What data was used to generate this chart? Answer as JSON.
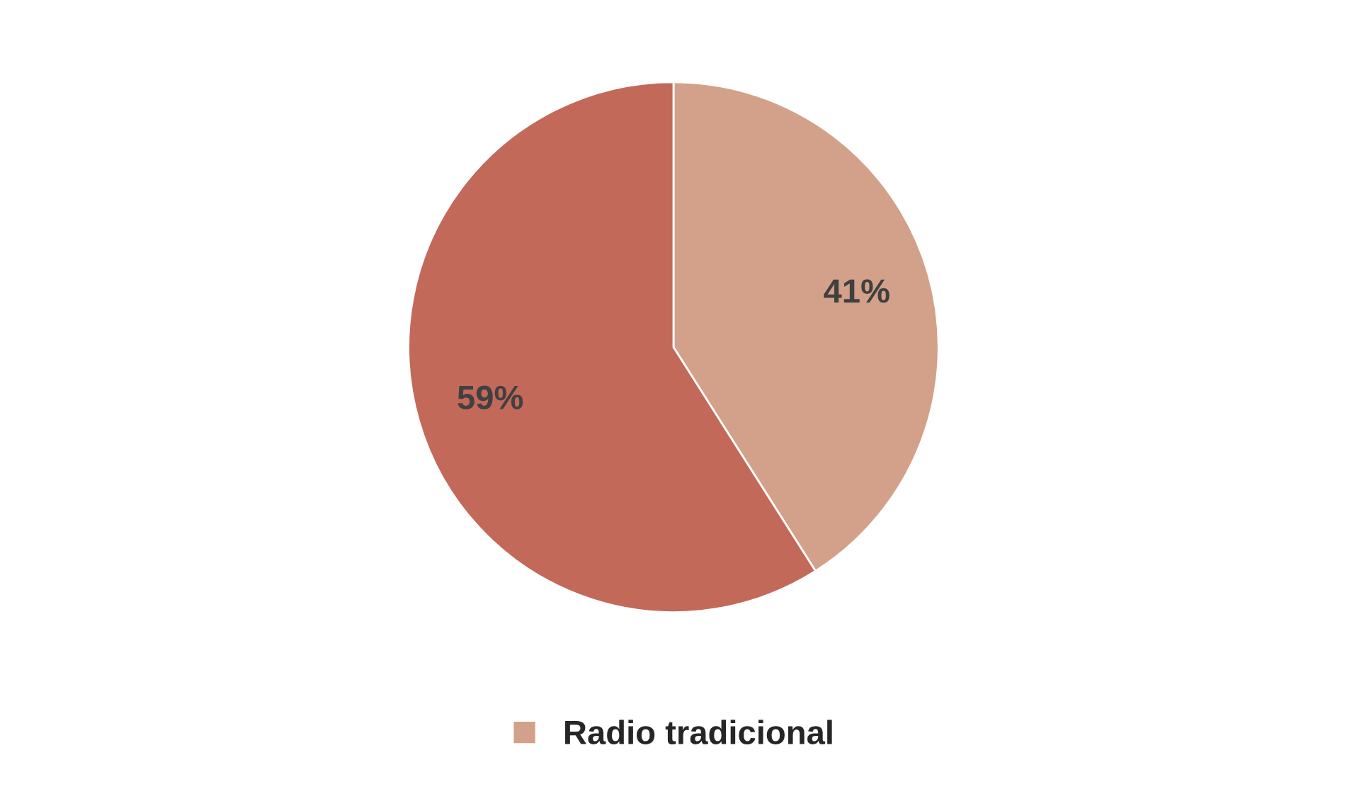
{
  "chart_data": {
    "type": "pie",
    "categories": [
      "Radio tradicional",
      null
    ],
    "values": [
      41,
      59
    ],
    "colors": [
      "#d3a189",
      "#c3695a"
    ],
    "value_labels": [
      "41%",
      "59%"
    ],
    "legend": "bottom"
  }
}
